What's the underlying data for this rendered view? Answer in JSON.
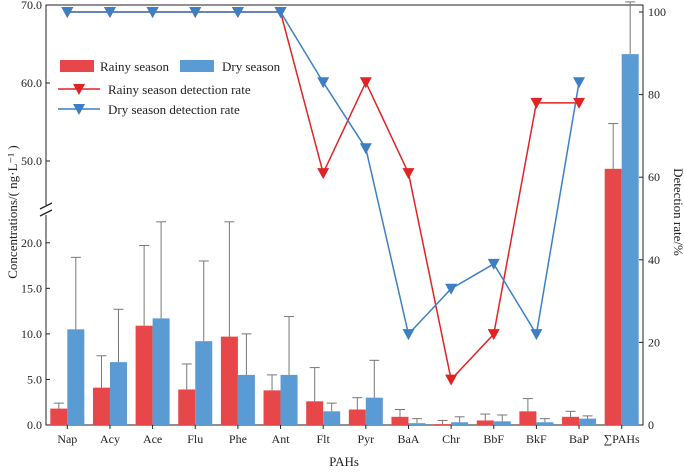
{
  "chart_data": {
    "type": "bar+line",
    "categories": [
      "Nap",
      "Acy",
      "Ace",
      "Flu",
      "Phe",
      "Ant",
      "Flt",
      "Pyr",
      "BaA",
      "Chr",
      "BbF",
      "BkF",
      "BaP",
      "∑PAHs"
    ],
    "xlabel": "PAHs",
    "ylabel_left": "Concentrations/( ng·L⁻¹ )",
    "ylabel_right": "Detection rate/%",
    "y_left_lower": {
      "range": [
        0,
        22.5
      ],
      "ticks": [
        "0.0",
        "5.0",
        "10.0",
        "15.0",
        "20.0"
      ]
    },
    "y_left_upper": {
      "range": [
        45,
        70
      ],
      "ticks": [
        "50.0",
        "60.0",
        "70.0"
      ]
    },
    "y_right": {
      "range": [
        0,
        100
      ],
      "ticks": [
        "0",
        "20",
        "40",
        "60",
        "80",
        "100"
      ]
    },
    "bar_series": [
      {
        "name": "Rainy season",
        "color": "#e8474a",
        "values": [
          1.8,
          4.1,
          10.9,
          3.9,
          9.7,
          3.8,
          2.6,
          1.7,
          0.9,
          0.1,
          0.5,
          1.5,
          0.9,
          49.0
        ],
        "errors": [
          0.6,
          3.5,
          8.8,
          2.8,
          12.6,
          1.7,
          3.7,
          1.3,
          0.8,
          0.4,
          0.7,
          1.4,
          0.6,
          5.8
        ]
      },
      {
        "name": "Dry season",
        "color": "#5a9bd4",
        "values": [
          10.5,
          6.9,
          11.7,
          9.2,
          5.5,
          5.5,
          1.5,
          3.0,
          0.2,
          0.3,
          0.4,
          0.3,
          0.7,
          63.7
        ],
        "errors": [
          7.9,
          5.8,
          10.6,
          8.8,
          4.5,
          6.4,
          0.9,
          4.1,
          0.5,
          0.6,
          0.7,
          0.4,
          0.3,
          6.7
        ]
      }
    ],
    "line_series": [
      {
        "name": "Rainy season detection rate",
        "color": "#e02424",
        "values": [
          100,
          100,
          100,
          100,
          100,
          100,
          61,
          83,
          61,
          11,
          22,
          78,
          78
        ]
      },
      {
        "name": "Dry season detection rate",
        "color": "#3d7fc4",
        "values": [
          100,
          100,
          100,
          100,
          100,
          100,
          83,
          67,
          22,
          33,
          39,
          22,
          83
        ]
      }
    ],
    "legend": {
      "bars": [
        "Rainy season",
        "Dry season"
      ],
      "lines": [
        "Rainy season detection rate",
        "Dry season detection rate"
      ],
      "position": "top-left"
    }
  }
}
